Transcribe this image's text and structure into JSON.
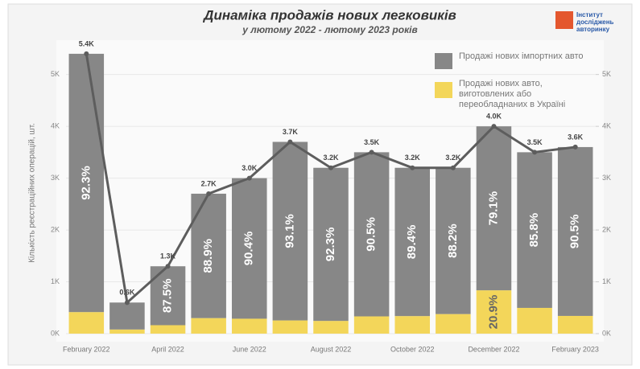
{
  "chart_data": {
    "type": "stacked_bar_line",
    "title": "Динаміка продажів нових легковиків",
    "subtitle": "у лютому 2022 - лютому 2023 років",
    "logo_text": "Інститут досліджень авторинку",
    "y_label": "Кількість реєстраційних операцій, шт.",
    "categories": [
      "February 2022",
      null,
      "April 2022",
      null,
      "June 2022",
      null,
      "August 2022",
      null,
      "October 2022",
      null,
      "December 2022",
      null,
      "February 2023"
    ],
    "series": [
      {
        "name": "Продажі нових імпортних авто",
        "color": "#878787",
        "values": [
          4984,
          520,
          1137,
          2400,
          2712,
          3445,
          2954,
          3167,
          2861,
          2822,
          3164,
          3003,
          3258
        ],
        "share_labels": [
          "92.3%",
          null,
          "87.5%",
          "88.9%",
          "90.4%",
          "93.1%",
          "92.3%",
          "90.5%",
          "89.4%",
          "88.2%",
          "79.1%",
          "85.8%",
          "90.5%"
        ]
      },
      {
        "name": "Продажі нових авто, виготовлених або переобладнаних в Україні",
        "color": "#f3d65a",
        "values": [
          416,
          80,
          163,
          300,
          288,
          255,
          246,
          333,
          339,
          378,
          836,
          497,
          342
        ],
        "share_labels": [
          null,
          null,
          null,
          null,
          null,
          null,
          null,
          null,
          null,
          null,
          "20.9%",
          null,
          null
        ]
      }
    ],
    "total": {
      "color": "#5d5d5d",
      "values": [
        5400,
        600,
        1300,
        2700,
        3000,
        3700,
        3200,
        3500,
        3200,
        3200,
        4000,
        3500,
        3600
      ],
      "value_labels": [
        "5.4K",
        "0.6K",
        "1.3K",
        "2.7K",
        "3.0K",
        "3.7K",
        "3.2K",
        "3.5K",
        "3.2K",
        "3.2K",
        "4.0K",
        "3.5K",
        "3.6K"
      ]
    },
    "ylim": [
      0,
      5600
    ],
    "yticks": [
      {
        "value": 0,
        "label": "0K"
      },
      {
        "value": 1000,
        "label": "1K"
      },
      {
        "value": 2000,
        "label": "2K"
      },
      {
        "value": 3000,
        "label": "3K"
      },
      {
        "value": 4000,
        "label": "4K"
      },
      {
        "value": 5000,
        "label": "5K"
      }
    ],
    "y2lim": [
      0,
      5600
    ],
    "y2ticks": [
      {
        "value": 0,
        "label": "0K"
      },
      {
        "value": 1000,
        "label": "1K"
      },
      {
        "value": 2000,
        "label": "2K"
      },
      {
        "value": 3000,
        "label": "3K"
      },
      {
        "value": 4000,
        "label": "4K"
      },
      {
        "value": 5000,
        "label": "5K"
      }
    ]
  }
}
